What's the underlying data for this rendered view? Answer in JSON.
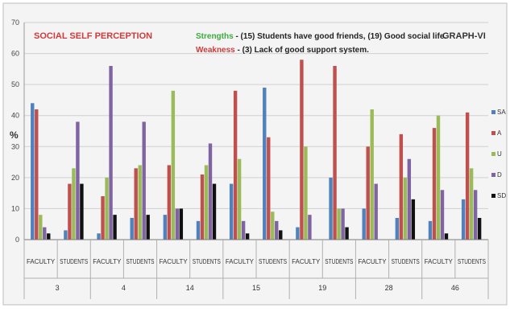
{
  "chart_data": {
    "type": "bar",
    "title": "SOCIAL SELF PERCEPTION",
    "graph_label": "GRAPH-VI",
    "annotations": [
      {
        "label": "Strengths",
        "text": " - (15) Students have good friends, (19) Good social life.",
        "color": "#3caa3c"
      },
      {
        "label": "Weakness",
        "text": " - (3) Lack of good support system.",
        "color": "#d03a3a"
      }
    ],
    "ylabel": "%",
    "ylim": [
      0,
      70
    ],
    "yticks": [
      0,
      10,
      20,
      30,
      40,
      50,
      60,
      70
    ],
    "grid": true,
    "legend_position": "right",
    "groups": [
      "3",
      "4",
      "14",
      "15",
      "19",
      "28",
      "46"
    ],
    "categories": [
      "FACULTY",
      "STUDENTS",
      "FACULTY",
      "STUDENTS",
      "FACULTY",
      "STUDENTS",
      "FACULTY",
      "STUDENTS",
      "FACULTY",
      "STUDENTS",
      "FACULTY",
      "STUDENTS",
      "FACULTY",
      "STUDENTS"
    ],
    "series": [
      {
        "name": "SA",
        "color": "#4f81bd",
        "values": [
          44,
          3,
          2,
          7,
          8,
          6,
          18,
          49,
          4,
          20,
          10,
          7,
          6,
          13
        ]
      },
      {
        "name": "A",
        "color": "#c0504d",
        "values": [
          42,
          18,
          14,
          23,
          24,
          21,
          48,
          33,
          58,
          56,
          30,
          34,
          36,
          41
        ]
      },
      {
        "name": "U",
        "color": "#9bbb59",
        "values": [
          8,
          23,
          20,
          24,
          48,
          24,
          26,
          9,
          30,
          10,
          42,
          20,
          40,
          23
        ]
      },
      {
        "name": "D",
        "color": "#8064a2",
        "values": [
          4,
          38,
          56,
          38,
          10,
          31,
          6,
          6,
          8,
          10,
          18,
          26,
          16,
          16
        ]
      },
      {
        "name": "SD",
        "color": "#111111",
        "values": [
          2,
          18,
          8,
          8,
          10,
          18,
          2,
          3,
          0,
          4,
          0,
          13,
          2,
          7
        ]
      }
    ]
  }
}
